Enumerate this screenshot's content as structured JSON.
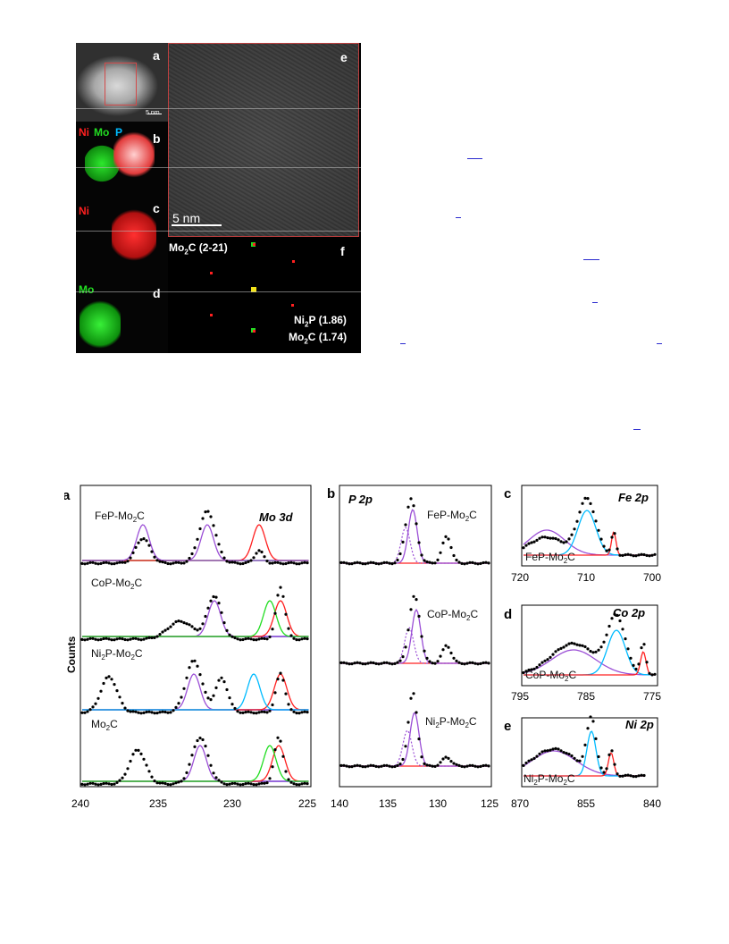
{
  "top_figure": {
    "panel_a": {
      "letter": "a",
      "scale": "5 nm"
    },
    "panel_b": {
      "letter": "b",
      "ni": "Ni",
      "mo": "Mo",
      "p": "P"
    },
    "panel_c": {
      "letter": "c",
      "ni": "Ni"
    },
    "panel_d": {
      "letter": "d",
      "mo": "Mo"
    },
    "panel_e": {
      "letter": "e",
      "scale": "5 nm"
    },
    "panel_f": {
      "letter": "f",
      "spot1_base": "Mo",
      "spot1_sub": "2",
      "spot1_rest": "C (2-21)",
      "spot2_base": "Ni",
      "spot2_sub": "2",
      "spot2_rest": "P (1.86)",
      "spot3_base": "Mo",
      "spot3_sub": "2",
      "spot3_rest": "C (1.74)"
    }
  },
  "xps": {
    "ylabel": "Counts",
    "panel_a": {
      "letter": "a",
      "title": "Mo 3d",
      "traces": [
        {
          "base": "FeP-Mo",
          "sub": "2",
          "rest": "C"
        },
        {
          "base": "CoP-Mo",
          "sub": "2",
          "rest": "C"
        },
        {
          "base": "Ni",
          "sub": "2",
          "rest": "P-Mo",
          "sub2": "2",
          "rest2": "C"
        },
        {
          "base": "Mo",
          "sub": "2",
          "rest": "C"
        }
      ],
      "ticks": [
        "240",
        "235",
        "230",
        "225"
      ]
    },
    "panel_b": {
      "letter": "b",
      "title": "P 2p",
      "traces": [
        {
          "base": "FeP-Mo",
          "sub": "2",
          "rest": "C"
        },
        {
          "base": "CoP-Mo",
          "sub": "2",
          "rest": "C"
        },
        {
          "base": "Ni",
          "sub": "2",
          "rest": "P-Mo",
          "sub2": "2",
          "rest2": "C"
        }
      ],
      "ticks": [
        "140",
        "135",
        "130",
        "125"
      ]
    },
    "panel_c": {
      "letter": "c",
      "title": "Fe 2p",
      "trace": {
        "base": "FeP-Mo",
        "sub": "2",
        "rest": "C"
      },
      "ticks": [
        "720",
        "710",
        "700"
      ]
    },
    "panel_d": {
      "letter": "d",
      "title": "Co 2p",
      "trace": {
        "base": "CoP-Mo",
        "sub": "2",
        "rest": "C"
      },
      "ticks": [
        "795",
        "785",
        "775"
      ]
    },
    "panel_e": {
      "letter": "e",
      "title": "Ni 2p",
      "trace": {
        "base": "Ni",
        "sub": "2",
        "rest": "P-Mo",
        "sub2": "2",
        "rest2": "C"
      },
      "ticks": [
        "870",
        "855",
        "840"
      ]
    }
  },
  "colors": {
    "red": "#ff2020",
    "green": "#22dd22",
    "blue": "#00bbff",
    "purple": "#9b4fd6",
    "navy": "#2222cc",
    "violet": "#cc33cc"
  }
}
